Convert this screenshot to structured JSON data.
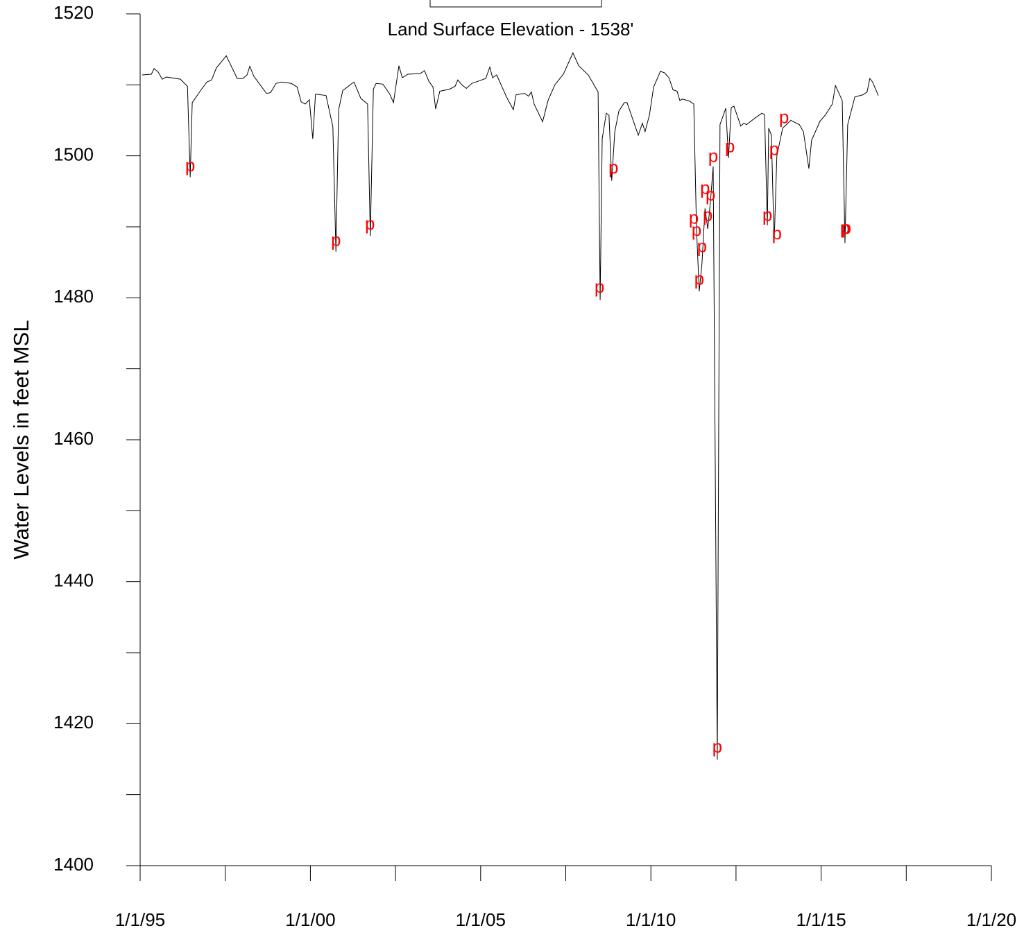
{
  "chart_data": {
    "type": "line",
    "title": "Land Surface Elevation - 1538'",
    "y_label": "Water Levels in feet MSL",
    "color": "#000000",
    "x": [
      1995.06,
      1995.33,
      1995.41,
      1995.53,
      1995.65,
      1995.77,
      1996.18,
      1996.39,
      1996.47,
      1996.53,
      1996.79,
      1996.96,
      1997.1,
      1997.24,
      1997.53,
      1997.85,
      1998.02,
      1998.14,
      1998.22,
      1998.34,
      1998.71,
      1998.83,
      1998.99,
      1999.16,
      1999.44,
      1999.61,
      1999.73,
      1999.85,
      1999.97,
      2000.07,
      2000.15,
      2000.46,
      2000.66,
      2000.75,
      2000.83,
      2000.95,
      2001.28,
      2001.48,
      2001.68,
      2001.76,
      2001.85,
      2001.93,
      2002.13,
      2002.33,
      2002.44,
      2002.6,
      2002.7,
      2002.86,
      2003.23,
      2003.35,
      2003.48,
      2003.6,
      2003.68,
      2003.8,
      2004.09,
      2004.25,
      2004.33,
      2004.45,
      2004.58,
      2004.74,
      2004.98,
      2005.15,
      2005.27,
      2005.35,
      2005.47,
      2005.76,
      2005.96,
      2006.04,
      2006.29,
      2006.41,
      2006.49,
      2006.57,
      2006.82,
      2006.98,
      2007.18,
      2007.43,
      2007.71,
      2007.88,
      2008.16,
      2008.45,
      2008.51,
      2008.57,
      2008.69,
      2008.77,
      2008.85,
      2008.94,
      2009.06,
      2009.22,
      2009.3,
      2009.63,
      2009.75,
      2009.83,
      2009.96,
      2010.08,
      2010.28,
      2010.4,
      2010.53,
      2010.65,
      2010.77,
      2010.85,
      2010.93,
      2011.14,
      2011.26,
      2011.34,
      2011.42,
      2011.5,
      2011.59,
      2011.67,
      2011.75,
      2011.83,
      2011.95,
      2012.03,
      2012.2,
      2012.28,
      2012.36,
      2012.44,
      2012.64,
      2012.73,
      2012.81,
      2013.05,
      2013.26,
      2013.34,
      2013.42,
      2013.46,
      2013.54,
      2013.62,
      2013.7,
      2013.87,
      2014.11,
      2014.36,
      2014.48,
      2014.64,
      2014.72,
      2014.97,
      2015.13,
      2015.33,
      2015.42,
      2015.62,
      2015.7,
      2015.78,
      2015.99,
      2016.23,
      2016.35,
      2016.43,
      2016.51,
      2016.68
    ],
    "values": [
      1511.4,
      1511.5,
      1512.3,
      1511.8,
      1510.8,
      1511.1,
      1510.8,
      1509.8,
      1497.0,
      1507.5,
      1509.3,
      1510.4,
      1510.7,
      1512.4,
      1514.1,
      1510.9,
      1510.9,
      1511.4,
      1512.6,
      1511.2,
      1508.8,
      1508.9,
      1510.2,
      1510.4,
      1510.2,
      1509.7,
      1507.6,
      1507.3,
      1507.9,
      1502.4,
      1508.7,
      1508.5,
      1504.1,
      1486.5,
      1506.5,
      1509.2,
      1510.4,
      1508.1,
      1507.3,
      1488.7,
      1509.4,
      1510.2,
      1510.1,
      1508.7,
      1507.5,
      1512.7,
      1511.0,
      1511.5,
      1511.6,
      1512.0,
      1510.5,
      1509.7,
      1506.6,
      1509.1,
      1509.4,
      1509.8,
      1510.7,
      1510.0,
      1509.5,
      1510.2,
      1510.6,
      1510.9,
      1512.5,
      1511.0,
      1511.4,
      1508.3,
      1506.5,
      1508.6,
      1508.8,
      1508.4,
      1509.0,
      1507.3,
      1504.8,
      1507.8,
      1510.0,
      1511.5,
      1514.5,
      1512.7,
      1511.4,
      1509.0,
      1479.7,
      1502.4,
      1506.0,
      1505.7,
      1496.5,
      1503.4,
      1506.3,
      1507.5,
      1507.5,
      1502.9,
      1504.6,
      1503.4,
      1505.8,
      1509.7,
      1511.9,
      1511.7,
      1511.0,
      1509.3,
      1509.1,
      1507.8,
      1508.0,
      1507.7,
      1507.3,
      1489.7,
      1480.9,
      1484.8,
      1492.6,
      1489.7,
      1493.6,
      1498.5,
      1414.9,
      1504.4,
      1506.7,
      1499.7,
      1506.8,
      1507.0,
      1504.2,
      1504.6,
      1504.4,
      1505.3,
      1506.0,
      1505.8,
      1490.2,
      1503.9,
      1502.9,
      1487.7,
      1500.0,
      1503.9,
      1505.0,
      1504.4,
      1503.4,
      1498.2,
      1502.2,
      1504.9,
      1505.8,
      1507.3,
      1509.9,
      1507.8,
      1487.7,
      1504.4,
      1508.3,
      1508.6,
      1509.0,
      1510.9,
      1510.4,
      1508.5
    ],
    "annotations": [
      {
        "x": 1996.47,
        "y": 1498.5,
        "text": "p"
      },
      {
        "x": 2000.75,
        "y": 1488.0,
        "text": "p"
      },
      {
        "x": 2001.75,
        "y": 1490.3,
        "text": "p"
      },
      {
        "x": 2008.49,
        "y": 1481.4,
        "text": "p"
      },
      {
        "x": 2008.9,
        "y": 1498.2,
        "text": "p"
      },
      {
        "x": 2011.26,
        "y": 1491.1,
        "text": "p"
      },
      {
        "x": 2011.34,
        "y": 1489.4,
        "text": "p"
      },
      {
        "x": 2011.42,
        "y": 1482.5,
        "text": "p"
      },
      {
        "x": 2011.5,
        "y": 1487.1,
        "text": "p"
      },
      {
        "x": 2011.59,
        "y": 1495.3,
        "text": "p"
      },
      {
        "x": 2011.67,
        "y": 1491.5,
        "text": "p"
      },
      {
        "x": 2011.75,
        "y": 1494.4,
        "text": "p"
      },
      {
        "x": 2011.83,
        "y": 1499.8,
        "text": "p"
      },
      {
        "x": 2011.95,
        "y": 1416.6,
        "text": "p"
      },
      {
        "x": 2012.32,
        "y": 1501.2,
        "text": "p"
      },
      {
        "x": 2013.42,
        "y": 1491.5,
        "text": "p"
      },
      {
        "x": 2013.62,
        "y": 1500.8,
        "text": "p"
      },
      {
        "x": 2013.7,
        "y": 1488.9,
        "text": "p"
      },
      {
        "x": 2013.91,
        "y": 1505.3,
        "text": "p"
      },
      {
        "x": 2015.7,
        "y": 1489.7,
        "text": "p"
      },
      {
        "x": 2015.74,
        "y": 1489.7,
        "text": "p"
      }
    ],
    "annotation_color": "#ff0000",
    "xlim": [
      1995,
      2020
    ],
    "xticks": [
      {
        "value": 1995,
        "label": "1/1/95"
      },
      {
        "value": 2000,
        "label": "1/1/00"
      },
      {
        "value": 2005,
        "label": "1/1/05"
      },
      {
        "value": 2010,
        "label": "1/1/10"
      },
      {
        "value": 2015,
        "label": "1/1/15"
      },
      {
        "value": 2020,
        "label": "1/1/20"
      }
    ],
    "ylim": [
      1400,
      1520
    ],
    "yticks": [
      1400,
      1420,
      1440,
      1460,
      1480,
      1500,
      1520
    ],
    "grid": false
  }
}
